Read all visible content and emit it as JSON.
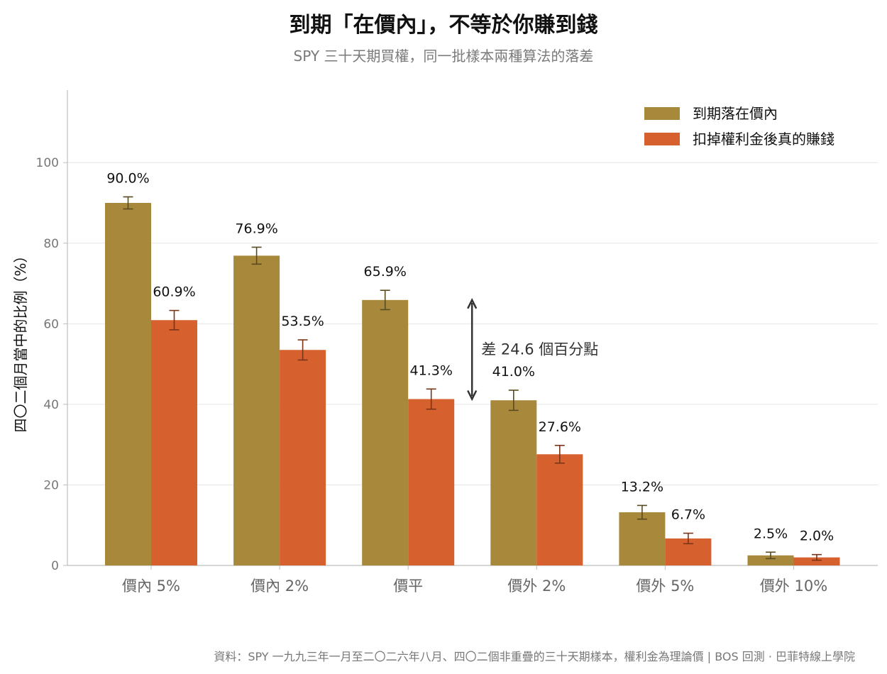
{
  "header": {
    "title": "到期「在價內」，不等於你賺到錢",
    "subtitle": "SPY 三十天期買權，同一批樣本兩種算法的落差"
  },
  "footer": {
    "source": "資料：SPY 一九九三年一月至二〇二六年八月、四〇二個非重疊的三十天期樣本，權利金為理論價 | BOS 回測 · 巴菲特線上學院"
  },
  "chart_data": {
    "type": "bar",
    "title": "到期「在價內」，不等於你賺到錢",
    "subtitle": "SPY 三十天期買權，同一批樣本兩種算法的落差",
    "ylabel": "四〇二個月當中的比例（%）",
    "xlabel": "",
    "ylim": [
      0,
      118
    ],
    "yticks": [
      0,
      20,
      40,
      60,
      80,
      100
    ],
    "grid": "horizontal",
    "legend_position": "top-right",
    "categories": [
      "價內 5%",
      "價內 2%",
      "價平",
      "價外 2%",
      "價外 5%",
      "價外 10%"
    ],
    "series": [
      {
        "name": "到期落在價內",
        "color": "#a8883b",
        "values": [
          90.0,
          76.9,
          65.9,
          41.0,
          13.2,
          2.5
        ],
        "labels": [
          "90.0%",
          "76.9%",
          "65.9%",
          "41.0%",
          "13.2%",
          "2.5%"
        ],
        "error": [
          1.5,
          2.1,
          2.4,
          2.5,
          1.7,
          0.8
        ]
      },
      {
        "name": "扣掉權利金後真的賺錢",
        "color": "#d6602e",
        "values": [
          60.9,
          53.5,
          41.3,
          27.6,
          6.7,
          2.0
        ],
        "labels": [
          "60.9%",
          "53.5%",
          "41.3%",
          "27.6%",
          "6.7%",
          "2.0%"
        ],
        "error": [
          2.4,
          2.5,
          2.5,
          2.2,
          1.3,
          0.7
        ]
      }
    ],
    "annotation": {
      "text": "差 24.6 個百分點",
      "category": "價平",
      "from": 41.3,
      "to": 65.9
    }
  }
}
